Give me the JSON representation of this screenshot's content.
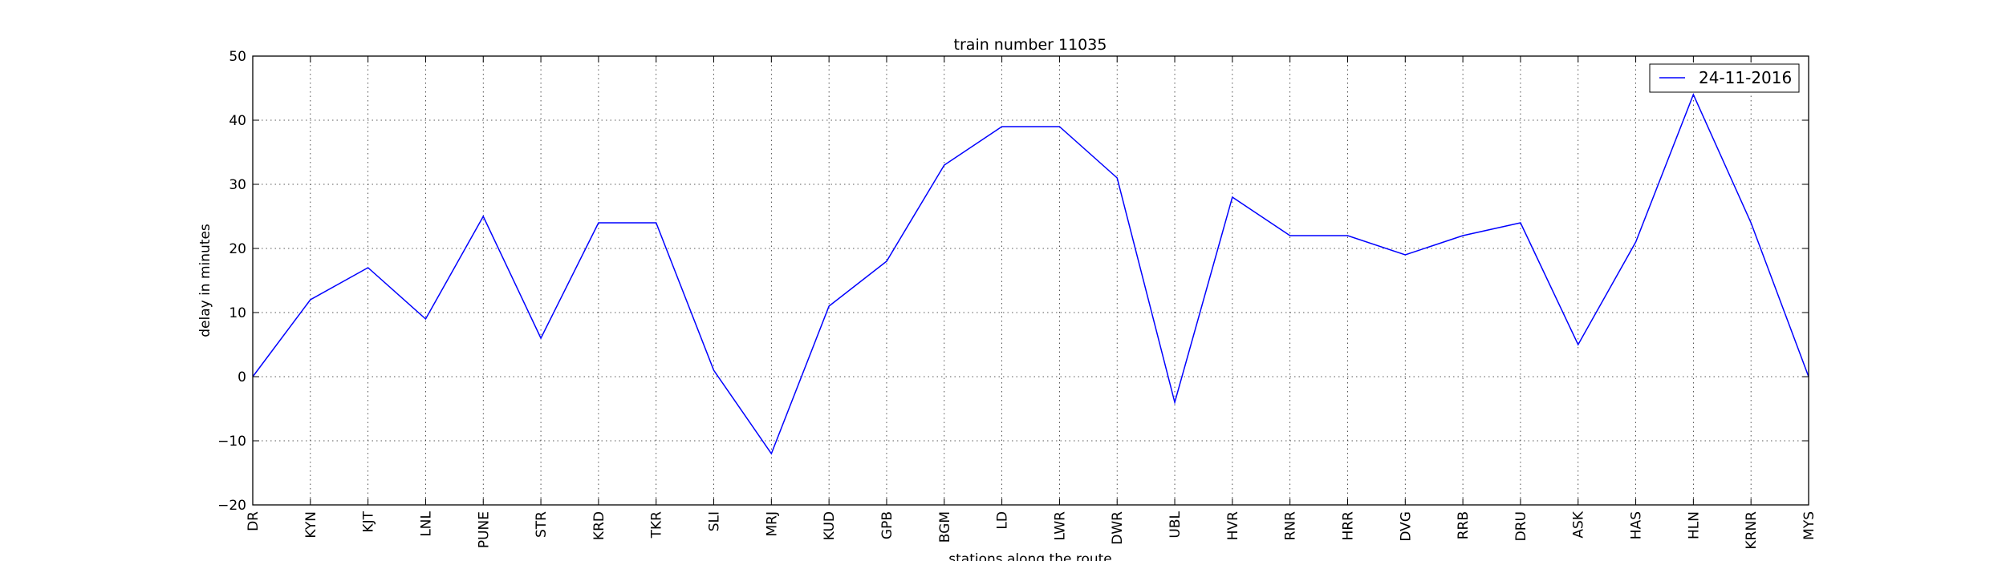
{
  "chart_data": {
    "type": "line",
    "title": "train number 11035",
    "xlabel": "stations along the route",
    "ylabel": "delay in minutes",
    "ylim": [
      -20,
      50
    ],
    "yticks": [
      -20,
      -10,
      0,
      10,
      20,
      30,
      40,
      50
    ],
    "ytick_labels": [
      "−20",
      "−10",
      "0",
      "10",
      "20",
      "30",
      "40",
      "50"
    ],
    "grid": true,
    "legend_position": "top-right",
    "categories": [
      "DR",
      "KYN",
      "KJT",
      "LNL",
      "PUNE",
      "STR",
      "KRD",
      "TKR",
      "SLI",
      "MRJ",
      "KUD",
      "GPB",
      "BGM",
      "LD",
      "LWR",
      "DWR",
      "UBL",
      "HVR",
      "RNR",
      "HRR",
      "DVG",
      "RRB",
      "DRU",
      "ASK",
      "HAS",
      "HLN",
      "KRNR",
      "MYS"
    ],
    "series": [
      {
        "name": "24-11-2016",
        "color": "#0000ff",
        "values": [
          0,
          12,
          17,
          9,
          25,
          6,
          24,
          24,
          1,
          -12,
          11,
          18,
          33,
          39,
          39,
          31,
          -4,
          28,
          22,
          22,
          19,
          22,
          24,
          5,
          21,
          44,
          24,
          0
        ]
      }
    ]
  }
}
